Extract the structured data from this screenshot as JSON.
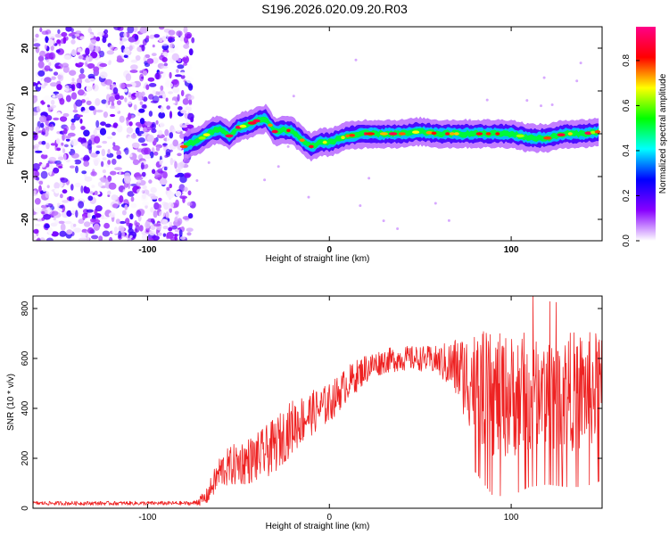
{
  "figure": {
    "title": "S196.2026.020.09.20.R03"
  },
  "chart_data": [
    {
      "type": "heatmap",
      "name": "spectrogram",
      "xlabel": "Height of straight line (km)",
      "ylabel": "Frequency (Hz)",
      "xlim": [
        -163,
        150
      ],
      "ylim": [
        -25,
        25
      ],
      "xticks": [
        -100,
        0,
        100
      ],
      "yticks": [
        20,
        10,
        0,
        -10,
        -20
      ],
      "grid": false,
      "noise_region_x": [
        -163,
        -75
      ],
      "ridge": {
        "x": [
          -80,
          -75,
          -70,
          -65,
          -60,
          -55,
          -50,
          -45,
          -40,
          -35,
          -30,
          -25,
          -20,
          -15,
          -10,
          -5,
          0,
          10,
          20,
          30,
          40,
          50,
          60,
          70,
          80,
          90,
          100,
          110,
          120,
          130,
          140,
          148
        ],
        "freq": [
          -3,
          -2,
          -1,
          0.5,
          1,
          -0.5,
          1.5,
          2,
          3,
          3.5,
          0.5,
          1,
          0.5,
          -1.5,
          -3,
          -2,
          -2,
          -0.5,
          0,
          0,
          0,
          0.5,
          0,
          0,
          0,
          0,
          0,
          -1,
          -1,
          0,
          0,
          0.5
        ]
      }
    },
    {
      "type": "colorbar",
      "name": "amplitude-colorbar",
      "label": "Normalized spectral amplitude",
      "range": [
        0,
        0.95
      ],
      "ticks": [
        0.0,
        0.2,
        0.4,
        0.6,
        0.8
      ],
      "tick_labels": [
        "0.0",
        "0.2",
        "0.4",
        "0.6",
        "0.8"
      ],
      "colors": [
        "#ffffff",
        "#8800ff",
        "#0000ff",
        "#00ffff",
        "#00ff00",
        "#ffff00",
        "#ff0000",
        "#ff0088"
      ]
    },
    {
      "type": "line",
      "name": "snr-plot",
      "xlabel": "Height of straight line (km)",
      "ylabel": "SNR (10 * v/v)",
      "xlim": [
        -163,
        150
      ],
      "ylim": [
        0,
        850
      ],
      "xticks": [
        -100,
        0,
        100
      ],
      "yticks": [
        0,
        200,
        400,
        600,
        800
      ],
      "grid": false,
      "series": [
        {
          "name": "SNR",
          "color": "#ee2222",
          "envelope_x": [
            -163,
            -75,
            -68,
            -60,
            -50,
            -40,
            -30,
            -20,
            -10,
            0,
            10,
            20,
            30,
            40,
            50,
            60,
            70,
            80,
            90,
            100,
            110,
            120,
            130,
            140,
            150
          ],
          "envelope_mean": [
            20,
            20,
            40,
            150,
            180,
            200,
            250,
            330,
            380,
            420,
            500,
            560,
            590,
            600,
            600,
            590,
            560,
            500,
            450,
            450,
            470,
            480,
            470,
            470,
            480
          ],
          "envelope_spread": [
            8,
            8,
            30,
            70,
            90,
            100,
            110,
            110,
            90,
            80,
            70,
            60,
            50,
            50,
            50,
            60,
            130,
            220,
            250,
            250,
            240,
            240,
            240,
            240,
            230
          ]
        }
      ]
    }
  ]
}
